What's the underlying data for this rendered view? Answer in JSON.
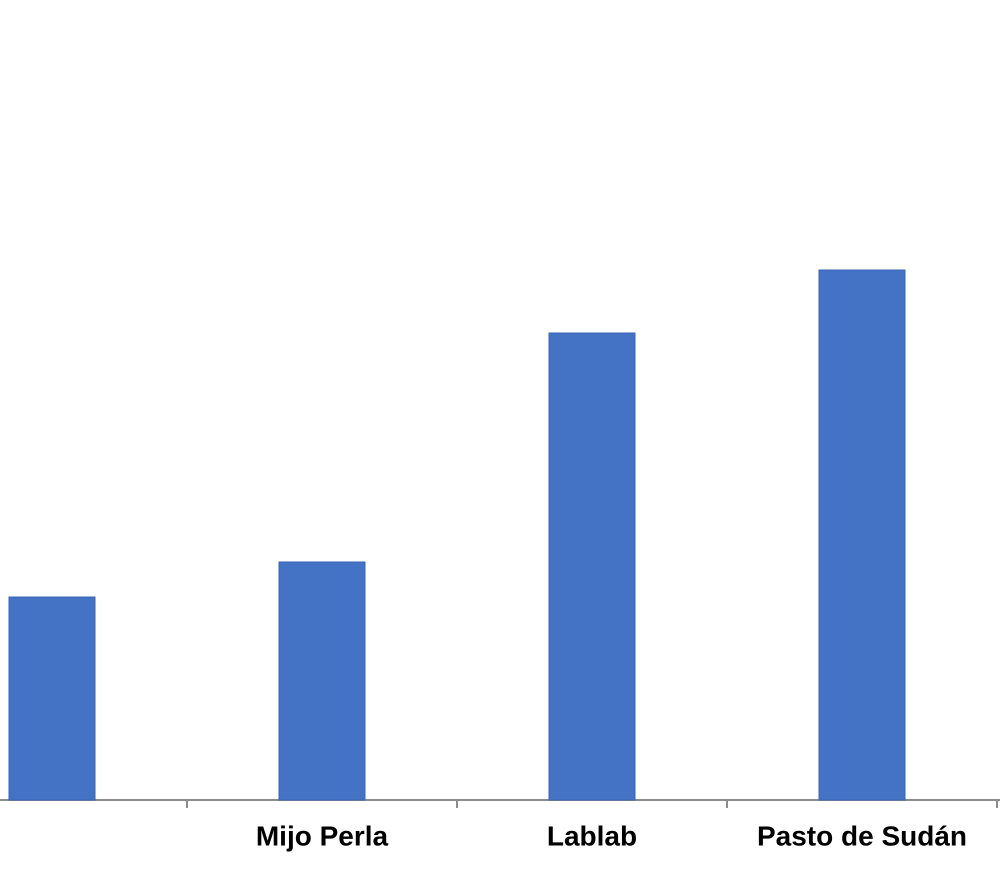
{
  "chart_data": {
    "type": "bar",
    "categories": [
      null,
      "Mijo Perla",
      "Lablab",
      "Pasto de Sudán"
    ],
    "values": [
      203,
      238,
      467,
      530
    ],
    "color": "#4472c4",
    "ylim": [
      0,
      800
    ]
  }
}
